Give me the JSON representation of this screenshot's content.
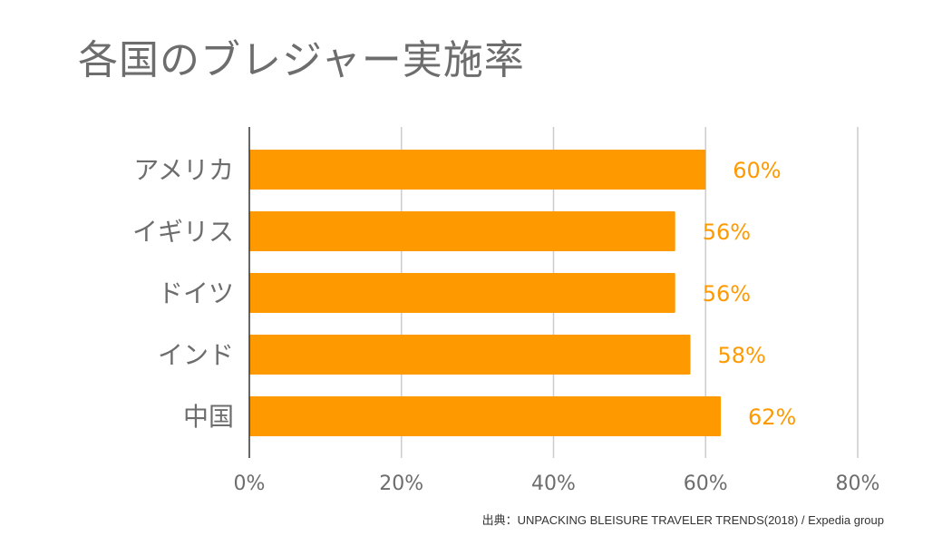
{
  "title": "各国のブレジャー実施率",
  "source": "出典：UNPACKING BLEISURE TRAVELER TRENDS(2018) / Expedia group",
  "colors": {
    "bar": "#ff9900",
    "label": "#ff9900",
    "text": "#6d6d6d",
    "grid": "#cccccc",
    "axis": "#333333"
  },
  "chart_data": {
    "type": "bar",
    "orientation": "horizontal",
    "categories": [
      "アメリカ",
      "イギリス",
      "ドイツ",
      "インド",
      "中国"
    ],
    "values": [
      60,
      56,
      56,
      58,
      62
    ],
    "value_labels": [
      "60%",
      "56%",
      "56%",
      "58%",
      "62%"
    ],
    "xlim": [
      0,
      80
    ],
    "xticks": [
      0,
      20,
      40,
      60,
      80
    ],
    "xtick_labels": [
      "0%",
      "20%",
      "40%",
      "60%",
      "80%"
    ],
    "grid": true
  }
}
